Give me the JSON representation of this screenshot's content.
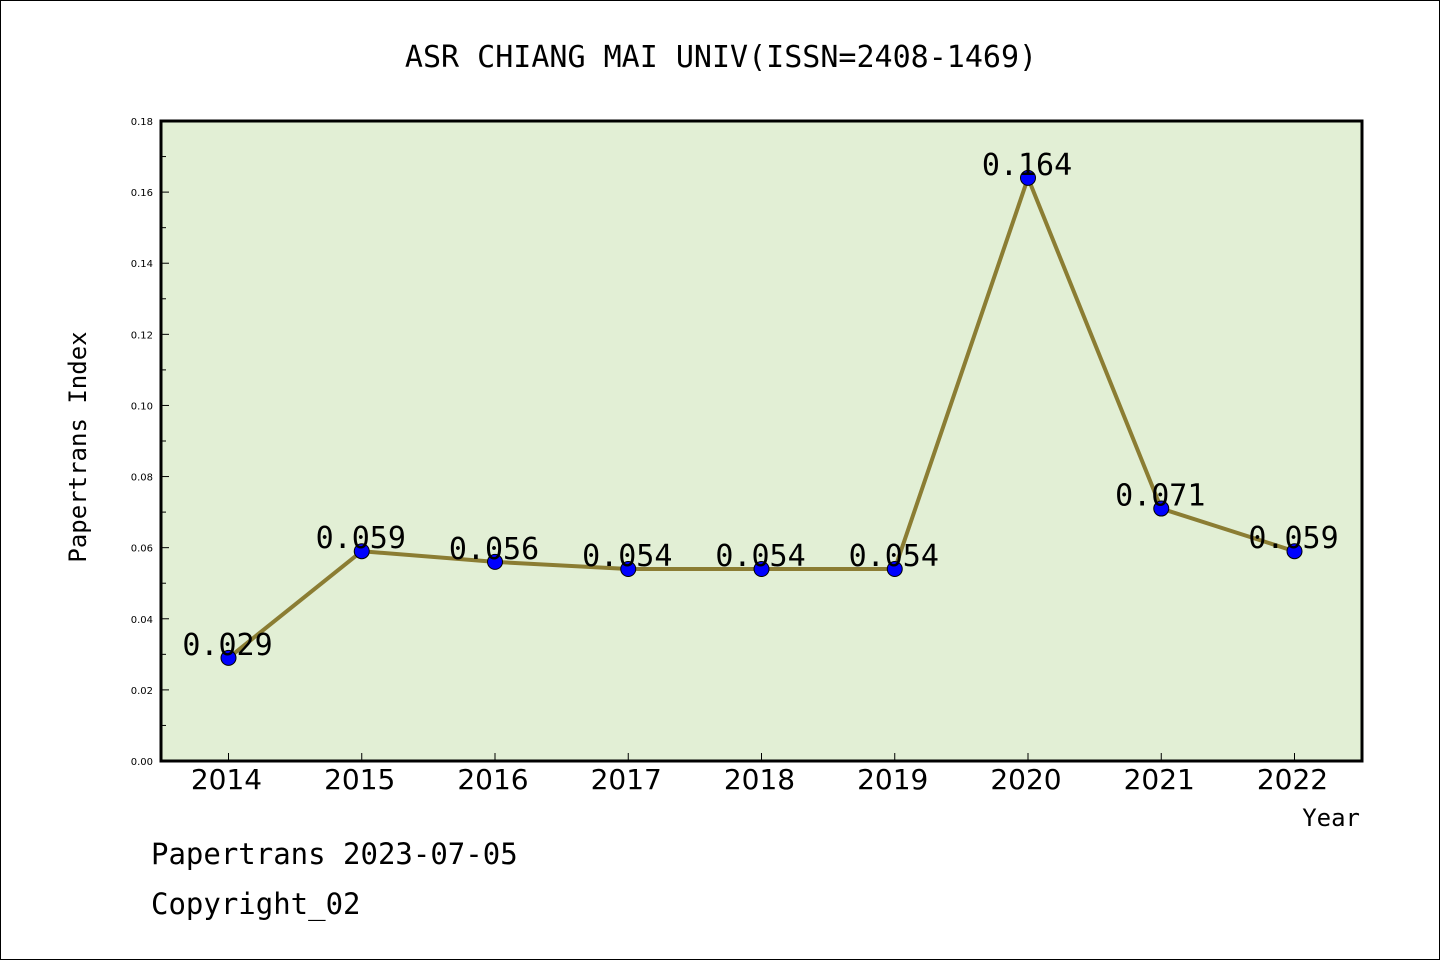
{
  "chart_data": {
    "type": "line",
    "title": "ASR CHIANG MAI UNIV(ISSN=2408-1469)",
    "xlabel": "Year",
    "ylabel": "Papertrans Index",
    "categories": [
      "2014",
      "2015",
      "2016",
      "2017",
      "2018",
      "2019",
      "2020",
      "2021",
      "2022"
    ],
    "values": [
      0.029,
      0.059,
      0.056,
      0.054,
      0.054,
      0.054,
      0.164,
      0.071,
      0.059
    ],
    "data_labels": [
      "0.029",
      "0.059",
      "0.056",
      "0.054",
      "0.054",
      "0.054",
      "0.164",
      "0.071",
      "0.059"
    ],
    "ylim": [
      0,
      0.18
    ],
    "yticks": [
      "0.00",
      "0.02",
      "0.04",
      "0.06",
      "0.08",
      "0.10",
      "0.12",
      "0.14",
      "0.16",
      "0.18"
    ],
    "grid": false,
    "colors": {
      "plot_background": "#e2efd5",
      "line": "#8b7d33",
      "marker": "#0000ff"
    }
  },
  "footer": {
    "date_line": "Papertrans 2023-07-05",
    "copyright_line": "Copyright_02"
  }
}
